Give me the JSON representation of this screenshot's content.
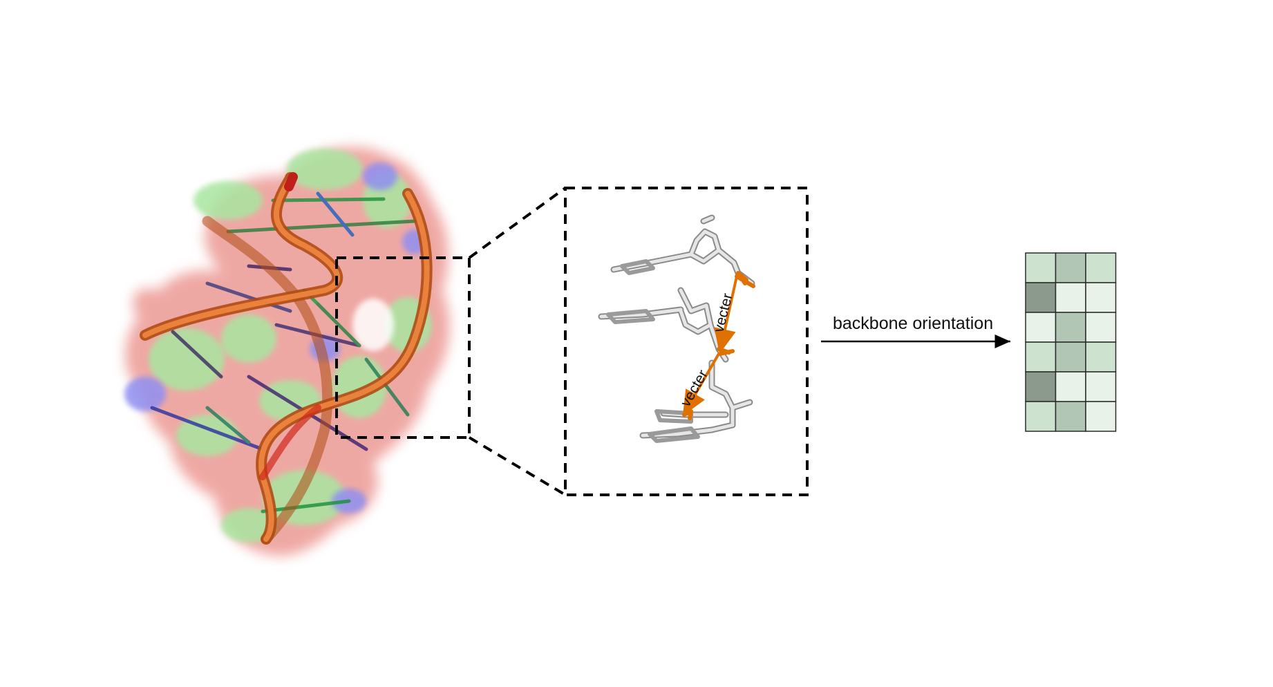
{
  "panels": {
    "molecule": {
      "semantic": "rna-surface-with-backbone-cartoon",
      "colors": {
        "surface_red": "#e88c86",
        "surface_green": "#9fe09a",
        "surface_blue": "#8c8cf0",
        "backbone": "#e0631a",
        "terminus": "#c0201a"
      }
    },
    "zoom": {
      "vector_labels": [
        "vecter",
        "vecter"
      ],
      "colors": {
        "stick": "#d8d8d8",
        "stick_edge": "#8a8a8a",
        "vector": "#e07000"
      }
    },
    "arrow": {
      "label": "backbone orientation"
    },
    "matrix": {
      "rows": 6,
      "cols": 3,
      "cell_shades": [
        [
          1,
          2,
          1
        ],
        [
          3,
          0,
          0
        ],
        [
          0,
          2,
          0
        ],
        [
          1,
          2,
          1
        ],
        [
          3,
          0,
          0
        ],
        [
          1,
          2,
          0
        ]
      ],
      "palette": [
        "#e8f2e8",
        "#cde3cf",
        "#b2c6b6",
        "#8b9a8d"
      ],
      "grid_color": "#2b2b2b"
    }
  }
}
